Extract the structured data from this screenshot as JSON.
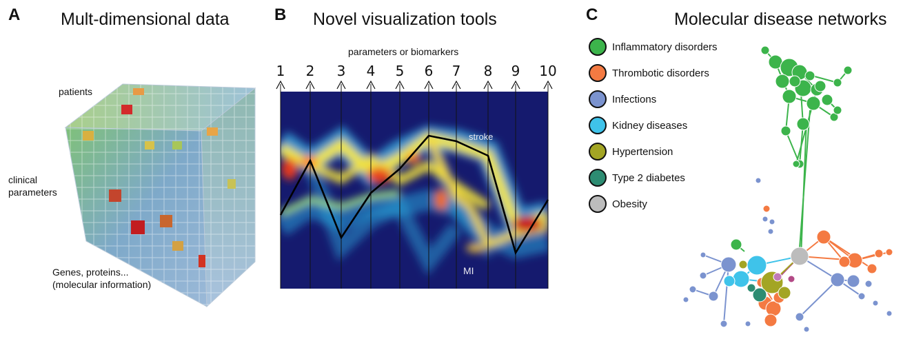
{
  "panels": {
    "a": {
      "letter": "A",
      "title": "Mult-dimensional data",
      "labels": {
        "patients": "patients",
        "clinical_1": "clinical",
        "clinical_2": "parameters",
        "genes_1": "Genes, proteins...",
        "genes_2": "(molecular information)"
      }
    },
    "b": {
      "letter": "B",
      "title": "Novel visualization tools",
      "axis_caption": "parameters or biomarkers",
      "axis_numbers": [
        "1",
        "2",
        "3",
        "4",
        "5",
        "6",
        "7",
        "8",
        "9",
        "10"
      ],
      "annotations": {
        "stroke": "stroke",
        "mi": "MI"
      }
    },
    "c": {
      "letter": "C",
      "title": "Molecular disease networks",
      "legend": [
        {
          "label": "Inflammatory disorders",
          "color": "#3cb44b"
        },
        {
          "label": "Thrombotic disorders",
          "color": "#f47a42"
        },
        {
          "label": "Infections",
          "color": "#7b93cf"
        },
        {
          "label": "Kidney diseases",
          "color": "#3fc3ea"
        },
        {
          "label": "Hypertension",
          "color": "#a3a524"
        },
        {
          "label": "Type 2 diabetes",
          "color": "#2d8c72"
        },
        {
          "label": "Obesity",
          "color": "#bcbcbc"
        }
      ]
    }
  }
}
